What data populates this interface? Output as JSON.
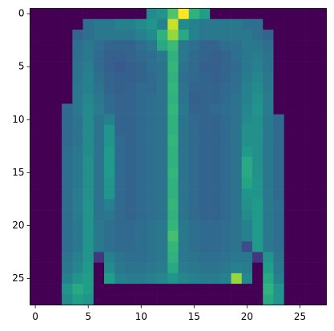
{
  "chart_data": {
    "type": "heatmap",
    "colormap": "viridis",
    "xlim": [
      -0.5,
      27.5
    ],
    "ylim": [
      27.5,
      -0.5
    ],
    "xticks": [
      0,
      5,
      10,
      15,
      20,
      25
    ],
    "yticks": [
      0,
      5,
      10,
      15,
      20,
      25
    ],
    "values": [
      [
        0,
        0,
        0,
        0,
        0,
        0,
        0,
        0,
        0,
        0,
        0,
        120,
        130,
        180,
        250,
        160,
        140,
        0,
        0,
        0,
        0,
        0,
        0,
        0,
        0,
        0,
        0,
        0
      ],
      [
        0,
        0,
        0,
        0,
        0,
        90,
        100,
        100,
        110,
        110,
        120,
        130,
        110,
        230,
        120,
        110,
        100,
        100,
        100,
        100,
        90,
        90,
        0,
        0,
        0,
        0,
        0,
        0
      ],
      [
        0,
        0,
        0,
        0,
        80,
        90,
        100,
        100,
        100,
        100,
        110,
        120,
        160,
        210,
        150,
        110,
        100,
        100,
        100,
        100,
        100,
        90,
        80,
        0,
        0,
        0,
        0,
        0
      ],
      [
        0,
        0,
        0,
        0,
        90,
        100,
        90,
        80,
        80,
        80,
        90,
        100,
        150,
        170,
        100,
        90,
        80,
        80,
        90,
        90,
        100,
        100,
        90,
        0,
        0,
        0,
        0,
        0
      ],
      [
        0,
        0,
        0,
        0,
        90,
        100,
        85,
        75,
        75,
        80,
        85,
        90,
        100,
        160,
        100,
        85,
        80,
        75,
        80,
        90,
        100,
        105,
        95,
        0,
        0,
        0,
        0,
        0
      ],
      [
        0,
        0,
        0,
        0,
        95,
        105,
        85,
        75,
        70,
        75,
        80,
        90,
        95,
        165,
        95,
        85,
        75,
        75,
        80,
        85,
        100,
        110,
        95,
        0,
        0,
        0,
        0,
        0
      ],
      [
        0,
        0,
        0,
        0,
        95,
        110,
        90,
        80,
        75,
        75,
        80,
        85,
        95,
        160,
        90,
        85,
        80,
        75,
        80,
        90,
        105,
        115,
        100,
        0,
        0,
        0,
        0,
        0
      ],
      [
        0,
        0,
        0,
        0,
        100,
        110,
        95,
        80,
        75,
        80,
        85,
        85,
        95,
        165,
        95,
        80,
        80,
        80,
        85,
        90,
        110,
        120,
        100,
        0,
        0,
        0,
        0,
        0
      ],
      [
        0,
        0,
        0,
        0,
        100,
        115,
        100,
        85,
        80,
        80,
        85,
        90,
        95,
        160,
        95,
        75,
        80,
        80,
        85,
        95,
        110,
        125,
        105,
        0,
        0,
        0,
        0,
        0
      ],
      [
        0,
        0,
        0,
        85,
        100,
        120,
        105,
        85,
        80,
        80,
        85,
        90,
        95,
        165,
        100,
        80,
        80,
        85,
        90,
        95,
        115,
        130,
        105,
        0,
        0,
        0,
        0,
        0
      ],
      [
        0,
        0,
        0,
        85,
        95,
        120,
        95,
        110,
        80,
        80,
        85,
        90,
        95,
        160,
        95,
        85,
        80,
        80,
        85,
        95,
        120,
        125,
        100,
        85,
        0,
        0,
        0,
        0
      ],
      [
        0,
        0,
        0,
        85,
        95,
        120,
        95,
        130,
        80,
        80,
        85,
        90,
        95,
        160,
        95,
        85,
        80,
        80,
        85,
        95,
        125,
        125,
        100,
        85,
        0,
        0,
        0,
        0
      ],
      [
        0,
        0,
        0,
        85,
        95,
        120,
        95,
        130,
        85,
        80,
        85,
        90,
        95,
        165,
        95,
        85,
        80,
        80,
        85,
        95,
        125,
        125,
        100,
        85,
        0,
        0,
        0,
        0
      ],
      [
        0,
        0,
        0,
        90,
        100,
        120,
        95,
        135,
        85,
        80,
        85,
        90,
        95,
        160,
        95,
        85,
        80,
        80,
        85,
        95,
        135,
        125,
        100,
        85,
        0,
        0,
        0,
        0
      ],
      [
        0,
        0,
        0,
        90,
        100,
        125,
        95,
        135,
        85,
        80,
        85,
        90,
        95,
        160,
        95,
        85,
        80,
        80,
        85,
        95,
        150,
        125,
        100,
        85,
        0,
        0,
        0,
        0
      ],
      [
        0,
        0,
        0,
        90,
        100,
        125,
        95,
        135,
        85,
        80,
        85,
        90,
        95,
        165,
        95,
        85,
        80,
        80,
        85,
        95,
        150,
        125,
        100,
        85,
        0,
        0,
        0,
        0
      ],
      [
        0,
        0,
        0,
        90,
        100,
        125,
        95,
        130,
        85,
        80,
        85,
        90,
        95,
        160,
        95,
        85,
        80,
        80,
        85,
        95,
        145,
        130,
        100,
        85,
        0,
        0,
        0,
        0
      ],
      [
        0,
        0,
        0,
        90,
        105,
        125,
        95,
        130,
        85,
        80,
        85,
        90,
        95,
        160,
        95,
        85,
        80,
        80,
        85,
        95,
        130,
        130,
        100,
        85,
        0,
        0,
        0,
        0
      ],
      [
        0,
        0,
        0,
        90,
        105,
        130,
        95,
        110,
        85,
        80,
        85,
        90,
        95,
        165,
        95,
        85,
        80,
        80,
        85,
        95,
        125,
        135,
        100,
        90,
        0,
        0,
        0,
        0
      ],
      [
        0,
        0,
        0,
        90,
        105,
        130,
        95,
        100,
        85,
        80,
        85,
        90,
        95,
        160,
        95,
        85,
        80,
        80,
        85,
        95,
        120,
        135,
        100,
        90,
        0,
        0,
        0,
        0
      ],
      [
        0,
        0,
        0,
        90,
        100,
        130,
        100,
        90,
        85,
        85,
        90,
        95,
        100,
        165,
        100,
        90,
        85,
        85,
        90,
        95,
        110,
        135,
        100,
        90,
        0,
        0,
        0,
        0
      ],
      [
        0,
        0,
        0,
        90,
        100,
        130,
        100,
        90,
        85,
        85,
        90,
        95,
        100,
        175,
        100,
        90,
        85,
        85,
        90,
        95,
        110,
        135,
        100,
        90,
        0,
        0,
        0,
        0
      ],
      [
        0,
        0,
        0,
        90,
        100,
        130,
        100,
        90,
        85,
        85,
        90,
        95,
        100,
        165,
        100,
        90,
        85,
        85,
        90,
        95,
        60,
        135,
        100,
        90,
        0,
        0,
        0,
        0
      ],
      [
        0,
        0,
        0,
        95,
        110,
        130,
        40,
        110,
        95,
        90,
        90,
        95,
        100,
        160,
        100,
        95,
        90,
        90,
        95,
        100,
        100,
        40,
        130,
        95,
        0,
        0,
        0,
        0
      ],
      [
        0,
        0,
        0,
        100,
        115,
        135,
        0,
        120,
        100,
        95,
        95,
        100,
        105,
        150,
        105,
        100,
        95,
        95,
        100,
        110,
        105,
        0,
        140,
        100,
        0,
        0,
        0,
        0
      ],
      [
        0,
        0,
        0,
        110,
        130,
        140,
        0,
        140,
        110,
        105,
        105,
        110,
        115,
        130,
        115,
        110,
        105,
        105,
        110,
        210,
        115,
        0,
        150,
        110,
        0,
        0,
        0,
        0
      ],
      [
        0,
        0,
        0,
        130,
        150,
        140,
        0,
        0,
        0,
        0,
        0,
        0,
        0,
        0,
        0,
        0,
        0,
        0,
        0,
        0,
        0,
        0,
        160,
        130,
        0,
        0,
        0,
        0
      ],
      [
        0,
        0,
        0,
        120,
        140,
        130,
        0,
        0,
        0,
        0,
        0,
        0,
        0,
        0,
        0,
        0,
        0,
        0,
        0,
        0,
        0,
        0,
        150,
        130,
        0,
        0,
        0,
        0
      ]
    ]
  }
}
